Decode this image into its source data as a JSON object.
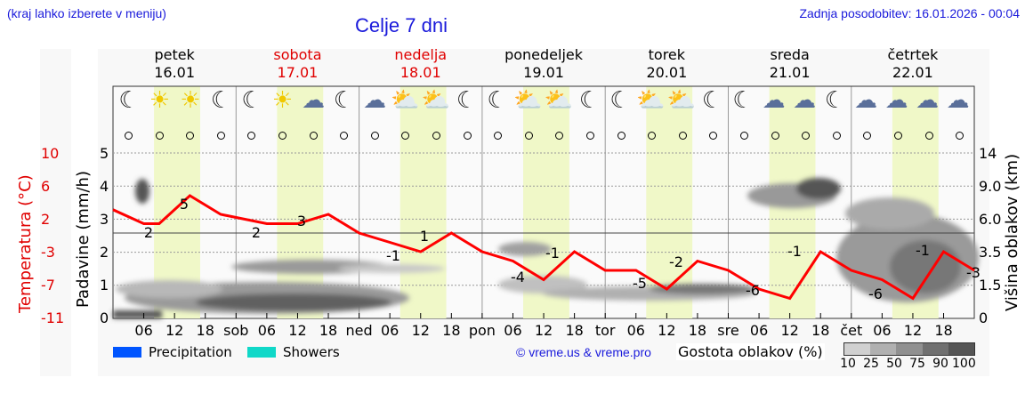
{
  "header": {
    "hint": "(kraj lahko izberete v meniju)",
    "title": "Celje 7 dni",
    "updated": "Zadnja posodobitev: 16.01.2026 - 00:04"
  },
  "days": [
    {
      "name": "petek",
      "date": "16.01",
      "weekend": false
    },
    {
      "name": "sobota",
      "date": "17.01",
      "weekend": true
    },
    {
      "name": "nedelja",
      "date": "18.01",
      "weekend": true
    },
    {
      "name": "ponedeljek",
      "date": "19.01",
      "weekend": false
    },
    {
      "name": "torek",
      "date": "20.01",
      "weekend": false
    },
    {
      "name": "sreda",
      "date": "21.01",
      "weekend": false
    },
    {
      "name": "četrtek",
      "date": "22.01",
      "weekend": false
    }
  ],
  "weather_icons": [
    "moon-fog",
    "sun-fog",
    "sun-fog",
    "moon-fog",
    "moon-fog",
    "sun-fog",
    "cloudy",
    "moon-fog",
    "cloudy",
    "sun-small-cloud",
    "sun-cloud",
    "moon-cloud",
    "moon-cloud",
    "sun-cloud",
    "sun-cloud",
    "moon-cloud",
    "moon-cloud",
    "sun-cloud",
    "sun-cloud",
    "moon-cloud",
    "moon-cloud",
    "cloudy",
    "cloudy",
    "moon-cloud",
    "cloudy",
    "cloudy",
    "cloudy",
    "cloudy"
  ],
  "axes": {
    "temp_title": "Temperatura (°C)",
    "temp_ticks": [
      "10",
      "6",
      "2",
      "-3",
      "-7",
      "-11"
    ],
    "precip_title": "Padavine (mm/h)",
    "precip_ticks": [
      "5",
      "4",
      "3",
      "2",
      "1",
      "0"
    ],
    "cloud_title": "Višina oblakov (km)",
    "cloud_ticks": [
      "14",
      "9.0",
      "6.0",
      "3.5",
      "1.5",
      "0"
    ],
    "x_ticks": [
      "06",
      "12",
      "18",
      "sob",
      "06",
      "12",
      "18",
      "ned",
      "06",
      "12",
      "18",
      "pon",
      "06",
      "12",
      "18",
      "tor",
      "06",
      "12",
      "18",
      "sre",
      "06",
      "12",
      "18",
      "čet",
      "06",
      "12",
      "18"
    ]
  },
  "legend": {
    "precipitation": "Precipitation",
    "showers": "Showers",
    "precipitation_color": "#0055ff",
    "showers_color": "#10d8c8",
    "credit": "© vreme.us & vreme.pro",
    "density_title": "Gostota oblakov (%)",
    "density_ticks": [
      "10",
      "25",
      "50",
      "75",
      "90",
      "100"
    ],
    "density_colors": [
      "#d0d0d0",
      "#b0b0b0",
      "#909090",
      "#707070",
      "#555555"
    ]
  },
  "chart_data": {
    "type": "line",
    "title": "Celje 7 dni",
    "xlabel": "",
    "ylabel": "Temperatura (°C)",
    "ylim": [
      -11,
      10
    ],
    "grid": true,
    "series": [
      {
        "name": "Temperatura",
        "color": "#ff0000",
        "x_hours": [
          0,
          6,
          9,
          15,
          21,
          30,
          36,
          42,
          48,
          54,
          60,
          66,
          72,
          78,
          84,
          90,
          96,
          102,
          108,
          114,
          120,
          126,
          132,
          138,
          144,
          150,
          156,
          162,
          168
        ],
        "values": [
          3.5,
          2,
          2,
          5,
          3,
          2,
          2,
          3,
          1,
          0,
          -1,
          1,
          -1,
          -2,
          -4,
          -1,
          -3,
          -3,
          -5,
          -2,
          -3,
          -5,
          -6,
          -1,
          -3,
          -4,
          -6,
          -1,
          -3
        ]
      }
    ],
    "annotations": {
      "min_max_labels": [
        {
          "day": "petek",
          "min": 2,
          "max": 5
        },
        {
          "day": "sobota",
          "min": 2,
          "max": 3
        },
        {
          "day": "nedelja",
          "min": -1,
          "max": 1
        },
        {
          "day": "ponedeljek",
          "min": -4,
          "max": -1
        },
        {
          "day": "torek",
          "min": -5,
          "max": -2
        },
        {
          "day": "sreda",
          "min": -6,
          "max": -1
        },
        {
          "day": "četrtek",
          "min": -6,
          "max": -1
        },
        {
          "day": "end",
          "min": -3,
          "max": null
        }
      ]
    },
    "precipitation_mm_h": "none",
    "cloud_layers": "low cloud 0.5–1.5 km Fri–Tue; high cloud 6–9 km Wed–Thu; dense 1.5–6 km Thu",
    "left_axes": {
      "temperature_c": [
        10,
        6,
        2,
        -3,
        -7,
        -11
      ],
      "precipitation_mm_h": [
        5,
        4,
        3,
        2,
        1,
        0
      ]
    },
    "right_axis": {
      "cloud_height_km": [
        14,
        9.0,
        6.0,
        3.5,
        1.5,
        0
      ]
    }
  }
}
